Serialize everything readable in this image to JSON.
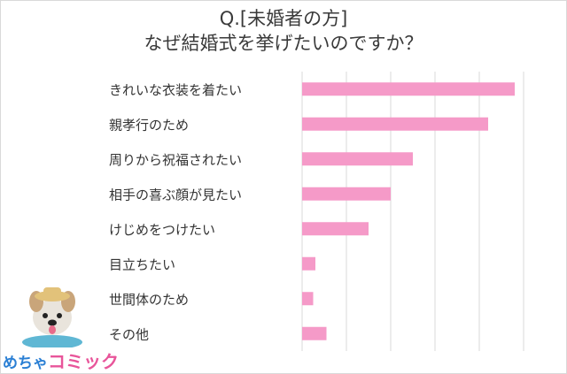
{
  "chart_data": {
    "type": "bar",
    "orientation": "horizontal",
    "title": [
      "Q.[未婚者の方]",
      "なぜ結婚式を挙げたいのですか？"
    ],
    "categories": [
      "きれいな衣装を着たい",
      "親孝行のため",
      "周りから祝福されたい",
      "相手の喜ぶ顔が見たい",
      "けじめをつけたい",
      "目立ちたい",
      "世間体のため",
      "その他"
    ],
    "values": [
      48,
      42,
      25,
      20,
      15,
      3,
      2.5,
      5.5
    ],
    "xlim": [
      0,
      50
    ],
    "grid": true,
    "bar_color": "#f59ac8",
    "grid_color": "#d9d9d9"
  },
  "logo": {
    "part1": "めちゃ",
    "part2": "コミック"
  }
}
